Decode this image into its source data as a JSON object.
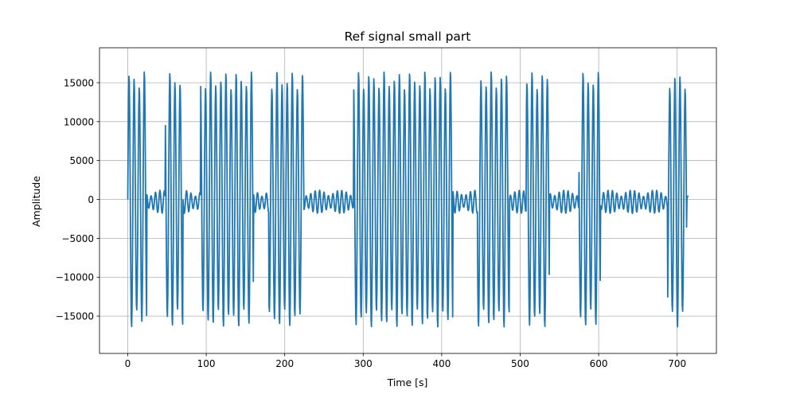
{
  "chart_data": {
    "type": "line",
    "title": "Ref signal small part",
    "xlabel": "Time [s]",
    "ylabel": "Amplitude",
    "xlim": [
      -36,
      750
    ],
    "ylim": [
      -19800,
      19500
    ],
    "xticks": [
      0,
      100,
      200,
      300,
      400,
      500,
      600,
      700
    ],
    "yticks": [
      -15000,
      -10000,
      -5000,
      0,
      5000,
      10000,
      15000
    ],
    "xtick_labels": [
      "0",
      "100",
      "200",
      "300",
      "400",
      "500",
      "600",
      "700"
    ],
    "ytick_labels": [
      "−15000",
      "−10000",
      "−5000",
      "0",
      "5000",
      "10000",
      "15000"
    ],
    "grid": true,
    "series": [
      {
        "color": "#1f77b4",
        "x_range": [
          0,
          714
        ],
        "bursts": [
          [
            0,
            24
          ],
          [
            48,
            70
          ],
          [
            93,
            160
          ],
          [
            180,
            224
          ],
          [
            288,
            414
          ],
          [
            446,
            486
          ],
          [
            508,
            537
          ],
          [
            575,
            602
          ],
          [
            688,
            712
          ]
        ],
        "peak_amplitude": 16500,
        "background_amplitude": 1500,
        "oscillation_period": 6.5
      }
    ]
  }
}
